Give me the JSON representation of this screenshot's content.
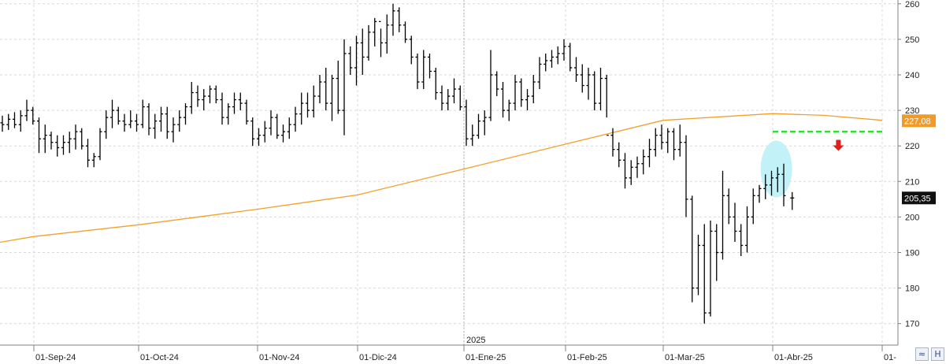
{
  "chart_data": {
    "type": "ohlc",
    "title": "",
    "xlabel": "",
    "ylabel": "",
    "ylim": [
      166,
      261
    ],
    "y_ticks": [
      170,
      180,
      190,
      200,
      210,
      220,
      230,
      240,
      250,
      260
    ],
    "x_ticks": [
      {
        "date": "2024-09-01",
        "label": "01-Sep-24"
      },
      {
        "date": "2024-10-01",
        "label": "01-Oct-24"
      },
      {
        "date": "2024-11-01",
        "label": "01-Nov-24"
      },
      {
        "date": "2024-12-01",
        "label": "01-Dic-24"
      },
      {
        "date": "2025-01-01",
        "label": "01-Ene-25"
      },
      {
        "date": "2025-02-01",
        "label": "01-Feb-25"
      },
      {
        "date": "2025-03-01",
        "label": "01-Mar-25"
      },
      {
        "date": "2025-04-01",
        "label": "01-Abr-25"
      },
      {
        "date": "2025-05-01",
        "label": "01-"
      }
    ],
    "year_marker": {
      "date": "2025-01-01",
      "label": "2025"
    },
    "price_bars": [
      [
        226.5,
        228.5,
        224,
        226
      ],
      [
        226,
        229,
        224.5,
        227.5
      ],
      [
        227.5,
        229.5,
        225,
        226
      ],
      [
        226,
        230,
        224,
        228.5
      ],
      [
        228.5,
        233,
        227,
        230
      ],
      [
        230,
        231,
        226,
        227
      ],
      [
        227,
        228,
        218,
        222
      ],
      [
        222,
        226,
        218,
        223
      ],
      [
        223,
        224,
        219,
        221
      ],
      [
        221,
        223,
        217,
        219.5
      ],
      [
        219.5,
        223,
        217.5,
        221
      ],
      [
        221,
        224,
        218,
        222
      ],
      [
        222,
        226,
        219,
        224
      ],
      [
        224,
        225,
        219,
        220
      ],
      [
        220,
        222,
        214,
        216
      ],
      [
        216,
        218,
        214,
        217
      ],
      [
        217,
        225,
        216,
        224
      ],
      [
        224,
        230,
        222,
        228
      ],
      [
        228,
        233,
        225,
        230
      ],
      [
        230,
        231,
        226,
        227
      ],
      [
        227,
        229,
        224,
        226
      ],
      [
        226,
        230,
        225,
        227
      ],
      [
        227,
        229,
        224,
        226
      ],
      [
        226,
        233,
        225,
        231
      ],
      [
        231,
        232,
        223,
        225
      ],
      [
        225,
        229,
        222,
        227
      ],
      [
        227,
        231,
        224,
        229
      ],
      [
        229,
        231,
        222,
        224
      ],
      [
        224,
        228,
        221,
        226
      ],
      [
        226,
        230,
        224,
        228
      ],
      [
        228,
        232,
        226,
        231
      ],
      [
        231,
        238,
        229,
        235
      ],
      [
        235,
        237,
        231,
        233
      ],
      [
        233,
        236,
        230,
        234
      ],
      [
        234,
        237,
        232,
        236
      ],
      [
        236,
        237,
        232,
        233
      ],
      [
        233,
        235,
        226,
        228
      ],
      [
        228,
        232,
        226,
        231
      ],
      [
        231,
        235,
        229,
        233
      ],
      [
        233,
        235,
        230,
        232
      ],
      [
        232,
        233,
        226,
        227
      ],
      [
        227,
        228,
        220,
        222
      ],
      [
        222,
        225,
        220,
        223
      ],
      [
        223,
        227,
        221,
        225
      ],
      [
        225,
        230,
        223,
        228
      ],
      [
        228,
        229,
        222,
        223
      ],
      [
        223,
        226,
        221,
        224
      ],
      [
        224,
        228,
        222,
        226
      ],
      [
        226,
        231,
        224,
        229
      ],
      [
        229,
        235,
        226,
        232
      ],
      [
        232,
        235,
        228,
        230
      ],
      [
        230,
        237,
        228,
        234
      ],
      [
        234,
        240,
        232,
        238
      ],
      [
        238,
        242,
        230,
        232
      ],
      [
        232,
        240,
        227,
        239
      ],
      [
        239,
        244,
        229,
        230
      ],
      [
        230,
        250,
        223,
        246
      ],
      [
        246,
        248,
        240,
        242
      ],
      [
        242,
        251,
        237,
        249
      ],
      [
        249,
        253,
        240,
        245
      ],
      [
        245,
        254,
        244,
        252
      ],
      [
        252,
        256,
        248,
        255
      ],
      [
        255,
        253,
        245,
        249
      ],
      [
        249,
        257,
        246,
        254
      ],
      [
        254,
        260,
        251,
        258
      ],
      [
        258,
        259,
        252,
        254
      ],
      [
        254,
        255,
        249,
        250
      ],
      [
        250,
        251,
        243,
        245
      ],
      [
        245,
        246,
        236,
        238
      ],
      [
        238,
        247,
        236,
        245
      ],
      [
        245,
        246,
        239,
        241
      ],
      [
        241,
        242,
        233,
        235
      ],
      [
        235,
        237,
        230,
        232
      ],
      [
        232,
        236,
        230,
        234
      ],
      [
        234,
        239,
        232,
        236
      ],
      [
        236,
        237,
        230,
        231
      ],
      [
        231,
        233,
        220,
        222
      ],
      [
        222,
        226,
        220,
        223
      ],
      [
        223,
        229,
        222,
        227
      ],
      [
        227,
        230,
        223,
        228
      ],
      [
        228,
        247,
        227,
        240
      ],
      [
        240,
        241,
        234,
        236
      ],
      [
        236,
        238,
        228,
        230
      ],
      [
        230,
        233,
        227,
        232
      ],
      [
        232,
        240,
        230,
        238
      ],
      [
        238,
        239,
        231,
        233
      ],
      [
        233,
        236,
        230,
        234
      ],
      [
        234,
        240,
        232,
        238
      ],
      [
        238,
        245,
        236,
        243
      ],
      [
        243,
        246,
        241,
        244
      ],
      [
        244,
        247,
        242,
        245
      ],
      [
        245,
        248,
        243,
        246
      ],
      [
        246,
        250,
        244,
        248
      ],
      [
        248,
        249,
        241,
        242
      ],
      [
        242,
        245,
        238,
        240
      ],
      [
        240,
        243,
        235,
        237
      ],
      [
        237,
        242,
        233,
        240
      ],
      [
        240,
        241,
        230,
        232
      ],
      [
        232,
        242,
        230,
        239
      ],
      [
        239,
        240,
        228,
        223
      ],
      [
        223,
        225,
        217,
        219
      ],
      [
        219,
        221,
        214,
        216
      ],
      [
        216,
        218,
        208,
        211
      ],
      [
        211,
        216,
        209,
        214
      ],
      [
        214,
        217,
        211,
        215
      ],
      [
        215,
        219,
        212,
        217
      ],
      [
        217,
        222,
        214,
        219
      ],
      [
        219,
        225,
        217,
        223
      ],
      [
        223,
        226,
        219,
        221
      ],
      [
        221,
        225,
        218,
        224
      ],
      [
        224,
        225,
        216,
        219
      ],
      [
        219,
        226,
        217,
        221
      ],
      [
        221,
        223,
        200,
        205
      ],
      [
        205,
        206,
        176,
        180
      ],
      [
        180,
        195,
        178,
        192
      ],
      [
        192,
        198,
        170,
        173
      ],
      [
        173,
        199,
        172,
        196
      ],
      [
        196,
        198,
        182,
        190
      ],
      [
        190,
        213,
        188,
        206
      ],
      [
        206,
        208,
        198,
        200
      ],
      [
        200,
        204,
        193,
        196
      ],
      [
        196,
        198,
        189,
        192
      ],
      [
        192,
        203,
        190,
        200
      ],
      [
        200,
        208,
        198,
        206
      ],
      [
        206,
        209,
        204,
        208
      ],
      [
        208,
        212,
        205,
        209
      ],
      [
        209,
        213,
        206,
        211
      ],
      [
        211,
        214,
        207,
        212
      ],
      [
        212,
        215,
        203,
        206
      ]
    ],
    "last_bar": [
      205.35,
      207,
      202,
      205.35
    ],
    "sma": [
      {
        "date": "2024-08-20",
        "value": 192.5
      },
      {
        "date": "2024-09-01",
        "value": 194.5
      },
      {
        "date": "2024-10-01",
        "value": 197.8
      },
      {
        "date": "2024-11-01",
        "value": 202.2
      },
      {
        "date": "2024-12-01",
        "value": 206.2
      },
      {
        "date": "2025-01-01",
        "value": 213.5
      },
      {
        "date": "2025-02-01",
        "value": 220.5
      },
      {
        "date": "2025-03-01",
        "value": 227.2
      },
      {
        "date": "2025-04-01",
        "value": 229.1
      },
      {
        "date": "2025-04-15",
        "value": 228.6
      },
      {
        "date": "2025-05-01",
        "value": 227.2
      }
    ],
    "resistance": {
      "value": 224,
      "from": "2025-04-01",
      "to": "2025-05-01"
    },
    "highlight_ellipse": {
      "date": "2025-04-02",
      "value": 213.5,
      "color": "#c3f1f8"
    },
    "down_arrow": {
      "date": "2025-04-19",
      "value": 218.6,
      "color": "#e0201f"
    },
    "price_labels": [
      {
        "text": "227,08",
        "value": 227.08,
        "bg": "#f19a26",
        "fg": "#ffffff"
      },
      {
        "text": "205,35",
        "value": 205.35,
        "bg": "#111111",
        "fg": "#ffffff"
      }
    ],
    "colors": {
      "bars": "#000000",
      "sma": "#f2a02a",
      "resistance": "#22e62a",
      "grid": "#d9d9d9",
      "axis": "#808080"
    },
    "grid": true
  },
  "corner_buttons": [
    {
      "symbol": "≈",
      "name": "scale-toggle-button"
    },
    {
      "symbol": "H",
      "name": "h-button"
    }
  ]
}
